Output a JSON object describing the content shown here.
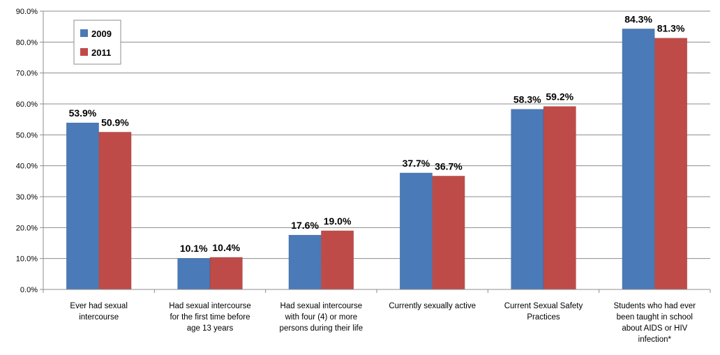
{
  "chart_data": {
    "type": "bar",
    "title": "",
    "xlabel": "",
    "ylabel": "",
    "ylim": [
      0,
      90
    ],
    "ytick_step": 10,
    "ytick_labels": [
      "0.0%",
      "10.0%",
      "20.0%",
      "30.0%",
      "40.0%",
      "50.0%",
      "60.0%",
      "70.0%",
      "80.0%",
      "90.0%"
    ],
    "grid": "horizontal",
    "legend_position": "top-left",
    "categories": [
      [
        "Ever had sexual",
        "intercourse"
      ],
      [
        "Had sexual intercourse",
        "for the first time before",
        "age 13 years"
      ],
      [
        "Had sexual intercourse",
        "with four (4) or more",
        "persons during their life"
      ],
      [
        "Currently sexually active"
      ],
      [
        "Current Sexual Safety",
        "Practices"
      ],
      [
        "Students who had ever",
        "been taught in school",
        "about AIDS or HIV",
        "infection*"
      ]
    ],
    "series": [
      {
        "name": "2009",
        "color": "#4a7ab7",
        "values": [
          53.9,
          10.1,
          17.6,
          37.7,
          58.3,
          84.3
        ],
        "labels": [
          "53.9%",
          "10.1%",
          "17.6%",
          "37.7%",
          "58.3%",
          "84.3%"
        ]
      },
      {
        "name": "2011",
        "color": "#be4b48",
        "values": [
          50.9,
          10.4,
          19.0,
          36.7,
          59.2,
          81.3
        ],
        "labels": [
          "50.9%",
          "10.4%",
          "19.0%",
          "36.7%",
          "59.2%",
          "81.3%"
        ]
      }
    ]
  }
}
